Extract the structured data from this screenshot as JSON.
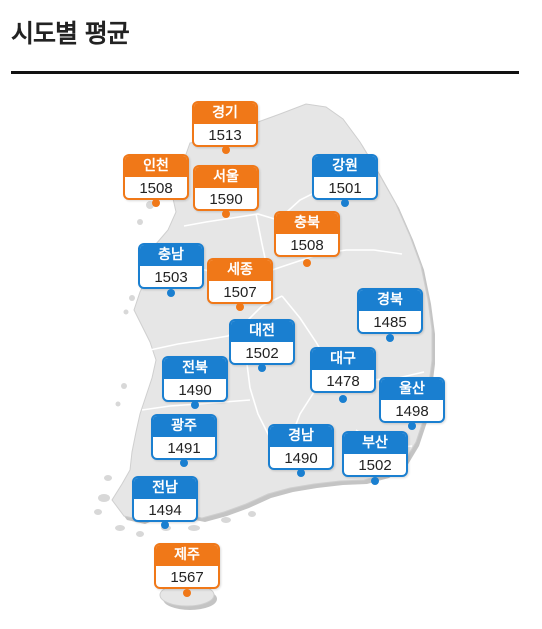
{
  "title": "시도별 평균",
  "colors": {
    "above": "#f07818",
    "below": "#1a7fd0",
    "land": "#e6e6e6",
    "land_edge": "#c9c9c9"
  },
  "regions": [
    {
      "id": "gyeonggi",
      "name": "경기",
      "value": "1513",
      "group": "above"
    },
    {
      "id": "incheon",
      "name": "인천",
      "value": "1508",
      "group": "above"
    },
    {
      "id": "seoul",
      "name": "서울",
      "value": "1590",
      "group": "above"
    },
    {
      "id": "gangwon",
      "name": "강원",
      "value": "1501",
      "group": "below"
    },
    {
      "id": "chungbuk",
      "name": "충북",
      "value": "1508",
      "group": "above"
    },
    {
      "id": "chungnam",
      "name": "충남",
      "value": "1503",
      "group": "below"
    },
    {
      "id": "sejong",
      "name": "세종",
      "value": "1507",
      "group": "above"
    },
    {
      "id": "gyeongbuk",
      "name": "경북",
      "value": "1485",
      "group": "below"
    },
    {
      "id": "daejeon",
      "name": "대전",
      "value": "1502",
      "group": "below"
    },
    {
      "id": "jeonbuk",
      "name": "전북",
      "value": "1490",
      "group": "below"
    },
    {
      "id": "daegu",
      "name": "대구",
      "value": "1478",
      "group": "below"
    },
    {
      "id": "ulsan",
      "name": "울산",
      "value": "1498",
      "group": "below"
    },
    {
      "id": "gwangju",
      "name": "광주",
      "value": "1491",
      "group": "below"
    },
    {
      "id": "gyeongnam",
      "name": "경남",
      "value": "1490",
      "group": "below"
    },
    {
      "id": "busan",
      "name": "부산",
      "value": "1502",
      "group": "below"
    },
    {
      "id": "jeonnam",
      "name": "전남",
      "value": "1494",
      "group": "below"
    },
    {
      "id": "jeju",
      "name": "제주",
      "value": "1567",
      "group": "above"
    }
  ]
}
